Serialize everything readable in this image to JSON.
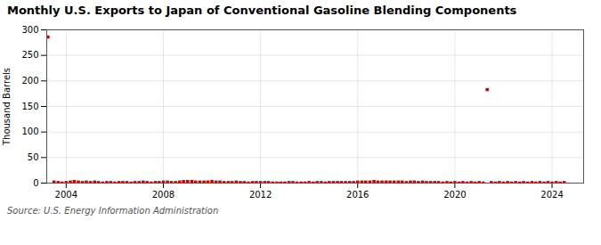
{
  "chart_data": {
    "type": "scatter",
    "title": "Monthly U.S. Exports to Japan of Conventional Gasoline Blending Components",
    "ylabel": "Thousand Barrels",
    "annotations": [
      "Source: U.S. Energy Information Administration"
    ],
    "color": "#cc0000",
    "marker": "square",
    "grid": true,
    "xlim": [
      2003.2,
      2025.3
    ],
    "xticks": [
      2004,
      2008,
      2012,
      2016,
      2020,
      2024
    ],
    "ylim": [
      0,
      300
    ],
    "yticks": [
      0,
      50,
      100,
      150,
      200,
      250,
      300
    ],
    "x": [
      2003.5,
      2003.67,
      2003.83,
      2004.0,
      2004.17,
      2004.33,
      2004.5,
      2004.67,
      2004.83,
      2005.0,
      2005.17,
      2005.33,
      2005.5,
      2005.67,
      2005.83,
      2006.0,
      2006.17,
      2006.33,
      2006.5,
      2006.67,
      2006.83,
      2007.0,
      2007.17,
      2007.33,
      2007.5,
      2007.67,
      2007.83,
      2008.0,
      2008.17,
      2008.33,
      2008.5,
      2008.67,
      2008.83,
      2009.0,
      2009.17,
      2009.33,
      2009.5,
      2009.67,
      2009.83,
      2010.0,
      2010.17,
      2010.33,
      2010.5,
      2010.67,
      2010.83,
      2011.0,
      2011.17,
      2011.33,
      2011.5,
      2011.67,
      2011.83,
      2012.0,
      2012.17,
      2012.33,
      2012.5,
      2012.67,
      2012.83,
      2013.0,
      2013.17,
      2013.33,
      2013.5,
      2013.67,
      2013.83,
      2014.0,
      2014.17,
      2014.33,
      2014.5,
      2014.67,
      2014.83,
      2015.0,
      2015.17,
      2015.33,
      2015.5,
      2015.67,
      2015.83,
      2016.0,
      2016.17,
      2016.33,
      2016.5,
      2016.67,
      2016.83,
      2017.0,
      2017.17,
      2017.33,
      2017.5,
      2017.67,
      2017.83,
      2018.0,
      2018.17,
      2018.33,
      2018.5,
      2018.67,
      2018.83,
      2019.0,
      2019.17,
      2019.33,
      2019.5,
      2019.67,
      2019.83,
      2020.0,
      2020.17,
      2020.33,
      2020.5,
      2020.67,
      2020.83,
      2021.0,
      2021.17,
      2021.5,
      2021.67,
      2021.83,
      2022.0,
      2022.17,
      2022.33,
      2022.5,
      2022.67,
      2022.83,
      2023.0,
      2023.17,
      2023.33,
      2023.5,
      2023.67,
      2023.83,
      2024.0,
      2024.17,
      2024.33,
      2024.5,
      2003.25,
      2021.33
    ],
    "values": [
      2,
      1,
      0,
      1,
      2,
      3,
      2,
      1,
      2,
      1,
      2,
      1,
      0,
      1,
      1,
      0,
      1,
      1,
      1,
      0,
      1,
      1,
      2,
      1,
      0,
      1,
      1,
      2,
      2,
      1,
      1,
      2,
      3,
      3,
      3,
      2,
      2,
      2,
      2,
      3,
      2,
      2,
      1,
      1,
      1,
      2,
      1,
      1,
      0,
      1,
      1,
      1,
      1,
      1,
      0,
      0,
      0,
      0,
      1,
      1,
      0,
      0,
      0,
      1,
      0,
      1,
      1,
      0,
      1,
      1,
      1,
      1,
      1,
      1,
      1,
      2,
      2,
      2,
      2,
      3,
      2,
      2,
      2,
      2,
      2,
      2,
      2,
      1,
      2,
      2,
      1,
      2,
      1,
      1,
      1,
      1,
      0,
      1,
      0,
      1,
      0,
      1,
      0,
      1,
      0,
      1,
      0,
      1,
      0,
      1,
      0,
      1,
      0,
      1,
      0,
      1,
      0,
      1,
      0,
      1,
      0,
      1,
      0,
      1,
      0,
      1,
      286,
      183
    ]
  }
}
